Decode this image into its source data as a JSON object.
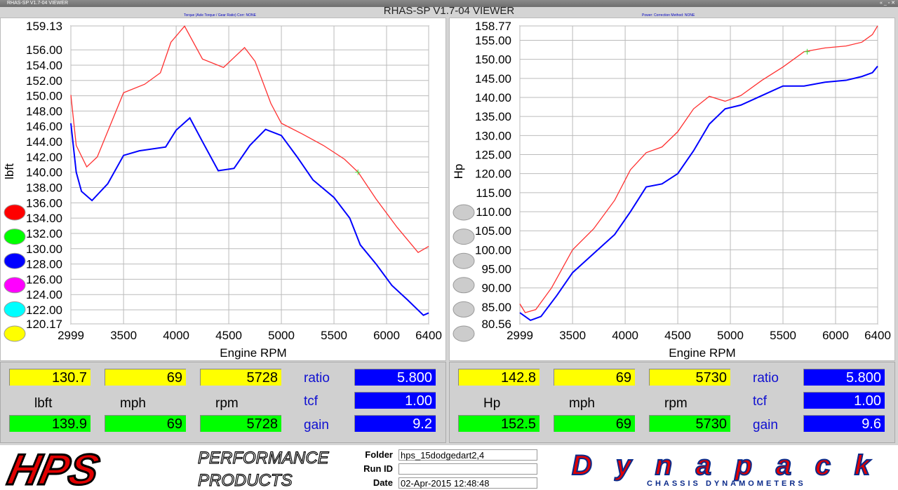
{
  "window": {
    "title": "RHAS-SP V1.7-04  VIEWER",
    "controls": "« _ ▫ ✕"
  },
  "app_title": "RHAS-SP V1.7-04  VIEWER",
  "left_subtitle": "Torque (Axle Torque / Gear Ratio)     Corr: NONE",
  "right_subtitle": "Power:     Correction Method: NONE",
  "chart_data": [
    {
      "type": "line",
      "ylabel": "lbft",
      "xlabel": "Engine RPM",
      "xlim": [
        2999,
        6400
      ],
      "ylim": [
        120.17,
        159.13
      ],
      "xticks": [
        "2999",
        "3500",
        "4000",
        "4500",
        "5000",
        "5500",
        "6000",
        "6400"
      ],
      "yticks": [
        "159.13",
        "156.00",
        "154.00",
        "152.00",
        "150.00",
        "148.00",
        "146.00",
        "144.00",
        "142.00",
        "140.00",
        "138.00",
        "136.00",
        "134.00",
        "132.00",
        "130.00",
        "128.00",
        "126.00",
        "124.00",
        "122.00",
        "120.17"
      ],
      "grid": true,
      "marker_rpm": 5728,
      "series": [
        {
          "color": "#ff3030",
          "x": [
            2999,
            3050,
            3150,
            3250,
            3500,
            3700,
            3850,
            3950,
            4080,
            4250,
            4450,
            4550,
            4650,
            4750,
            4900,
            5000,
            5200,
            5400,
            5600,
            5730,
            5900,
            6100,
            6300,
            6400
          ],
          "y": [
            150.1,
            143.5,
            140.7,
            142,
            150.4,
            151.5,
            153,
            157,
            159.1,
            154.8,
            153.7,
            155,
            156.3,
            154.5,
            149,
            146.4,
            145,
            143.5,
            141.7,
            140,
            136.5,
            132.8,
            129.5,
            130.3
          ]
        },
        {
          "color": "#0000ff",
          "x": [
            2999,
            3050,
            3100,
            3200,
            3350,
            3500,
            3650,
            3900,
            4000,
            4130,
            4250,
            4400,
            4550,
            4700,
            4850,
            5000,
            5150,
            5300,
            5500,
            5650,
            5750,
            5900,
            6050,
            6200,
            6350,
            6400
          ],
          "y": [
            146.4,
            140,
            137.5,
            136.3,
            138.5,
            142.2,
            142.8,
            143.3,
            145.5,
            147.1,
            144,
            140.2,
            140.5,
            143.5,
            145.6,
            144.8,
            142,
            139,
            136.7,
            134,
            130.5,
            128,
            125.2,
            123.3,
            121.3,
            121.6
          ]
        }
      ]
    },
    {
      "type": "line",
      "ylabel": "Hp",
      "xlabel": "Engine RPM",
      "xlim": [
        2999,
        6400
      ],
      "ylim": [
        80.56,
        158.77
      ],
      "xticks": [
        "2999",
        "3500",
        "4000",
        "4500",
        "5000",
        "5500",
        "6000",
        "6400"
      ],
      "yticks": [
        "158.77",
        "155.00",
        "150.00",
        "145.00",
        "140.00",
        "135.00",
        "130.00",
        "125.00",
        "120.00",
        "115.00",
        "110.00",
        "105.00",
        "100.00",
        "95.00",
        "90.00",
        "85.00",
        "80.56"
      ],
      "grid": true,
      "marker_rpm": 5730,
      "series": [
        {
          "color": "#ff3030",
          "x": [
            2999,
            3050,
            3150,
            3300,
            3500,
            3700,
            3900,
            4050,
            4200,
            4350,
            4500,
            4650,
            4800,
            4950,
            5100,
            5300,
            5500,
            5700,
            5900,
            6100,
            6250,
            6350,
            6400
          ],
          "y": [
            85.8,
            83.5,
            84.3,
            90,
            100,
            105.5,
            113,
            121,
            125.5,
            127,
            131,
            137,
            140.3,
            139,
            140.5,
            144.5,
            148,
            152,
            153,
            153.5,
            154.5,
            156.5,
            158.8
          ]
        },
        {
          "color": "#0000ff",
          "x": [
            2999,
            3100,
            3200,
            3350,
            3500,
            3700,
            3900,
            4050,
            4200,
            4350,
            4500,
            4650,
            4800,
            4950,
            5100,
            5300,
            5500,
            5700,
            5900,
            6100,
            6250,
            6350,
            6400
          ],
          "y": [
            83.5,
            81.5,
            82.5,
            88,
            94,
            99,
            104,
            110,
            116.5,
            117.3,
            120,
            126,
            133,
            137,
            138,
            140.5,
            143,
            143,
            144,
            144.5,
            145.5,
            146.5,
            148.2
          ]
        }
      ]
    }
  ],
  "left_swatches": [
    "#ff0000",
    "#00ff00",
    "#0000ff",
    "#ff00ff",
    "#00ffff",
    "#ffff00"
  ],
  "right_swatches": [
    "#cccccc",
    "#cccccc",
    "#cccccc",
    "#cccccc",
    "#cccccc",
    "#cccccc"
  ],
  "left_panel": {
    "run1": [
      "130.7",
      "69",
      "5728"
    ],
    "units": [
      "lbft",
      "mph",
      "rpm"
    ],
    "run2": [
      "139.9",
      "69",
      "5728"
    ],
    "ratio_label": "ratio",
    "ratio": "5.800",
    "tcf_label": "tcf",
    "tcf": "1.00",
    "gain_label": "gain",
    "gain": "9.2"
  },
  "right_panel": {
    "run1": [
      "142.8",
      "69",
      "5730"
    ],
    "units": [
      "Hp",
      "mph",
      "rpm"
    ],
    "run2": [
      "152.5",
      "69",
      "5730"
    ],
    "ratio_label": "ratio",
    "ratio": "5.800",
    "tcf_label": "tcf",
    "tcf": "1.00",
    "gain_label": "gain",
    "gain": "9.6"
  },
  "footer": {
    "hps_logo": "HPS",
    "hps_text1": "PERFORMANCE",
    "hps_text2": "PRODUCTS",
    "folder_label": "Folder",
    "folder": "hps_15dodgedart2,4",
    "runid_label": "Run ID",
    "runid": "",
    "date_label": "Date",
    "date": "02-Apr-2015  12:48:48",
    "dyna_logo": "Dynapack",
    "dyna_sub": "CHASSIS DYNAMOMETERS"
  }
}
